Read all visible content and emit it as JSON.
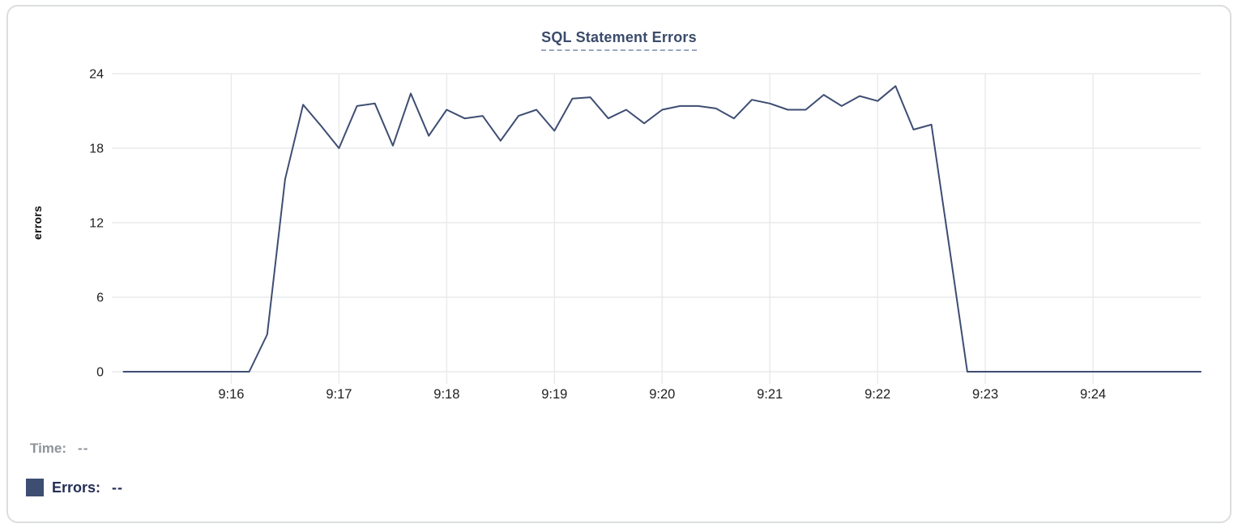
{
  "chart_data": {
    "type": "line",
    "title": "SQL Statement Errors",
    "xlabel": "",
    "ylabel": "errors",
    "x_range": [
      "9:15:00",
      "9:25:00"
    ],
    "ylim": [
      0,
      24
    ],
    "y_ticks": [
      0,
      6,
      12,
      18,
      24
    ],
    "x_ticks": [
      "9:16",
      "9:17",
      "9:18",
      "9:19",
      "9:20",
      "9:21",
      "9:22",
      "9:23",
      "9:24"
    ],
    "grid": true,
    "legend_position": "bottom-left",
    "series": [
      {
        "name": "Errors",
        "color": "#3e4d72",
        "times": [
          "9:15:00",
          "9:15:10",
          "9:15:20",
          "9:15:30",
          "9:15:40",
          "9:15:50",
          "9:16:00",
          "9:16:10",
          "9:16:20",
          "9:16:30",
          "9:16:40",
          "9:16:50",
          "9:17:00",
          "9:17:10",
          "9:17:20",
          "9:17:30",
          "9:17:40",
          "9:17:50",
          "9:18:00",
          "9:18:10",
          "9:18:20",
          "9:18:30",
          "9:18:40",
          "9:18:50",
          "9:19:00",
          "9:19:10",
          "9:19:20",
          "9:19:30",
          "9:19:40",
          "9:19:50",
          "9:20:00",
          "9:20:10",
          "9:20:20",
          "9:20:30",
          "9:20:40",
          "9:20:50",
          "9:21:00",
          "9:21:10",
          "9:21:20",
          "9:21:30",
          "9:21:40",
          "9:21:50",
          "9:22:00",
          "9:22:10",
          "9:22:20",
          "9:22:30",
          "9:22:40",
          "9:22:50",
          "9:23:00",
          "9:23:10",
          "9:23:20",
          "9:23:30",
          "9:23:40",
          "9:23:50",
          "9:24:00",
          "9:24:10",
          "9:24:20",
          "9:24:30",
          "9:24:40",
          "9:24:50",
          "9:25:00"
        ],
        "values": [
          0,
          0,
          0,
          0,
          0,
          0,
          0,
          0,
          3,
          15.5,
          21.5,
          19.8,
          18,
          21.4,
          21.6,
          18.2,
          22.4,
          19,
          21.1,
          20.4,
          20.6,
          18.6,
          20.6,
          21.1,
          19.4,
          22,
          22.1,
          20.4,
          21.1,
          20,
          21.1,
          21.4,
          21.4,
          21.2,
          20.4,
          21.9,
          21.6,
          21.1,
          21.1,
          22.3,
          21.4,
          22.2,
          21.8,
          23,
          19.5,
          19.9,
          10,
          0,
          0,
          0,
          0,
          0,
          0,
          0,
          0,
          0,
          0,
          0,
          0,
          0,
          0
        ]
      }
    ]
  },
  "legend": {
    "time_label": "Time:",
    "time_value": "--",
    "errors_label": "Errors:",
    "errors_value": "--"
  },
  "colors": {
    "line": "#3e4d72",
    "grid": "#e8eaec",
    "tick_text": "#202124",
    "title": "#3b4b6b",
    "legend_muted": "#8e9299",
    "legend_accent": "#252f56"
  }
}
